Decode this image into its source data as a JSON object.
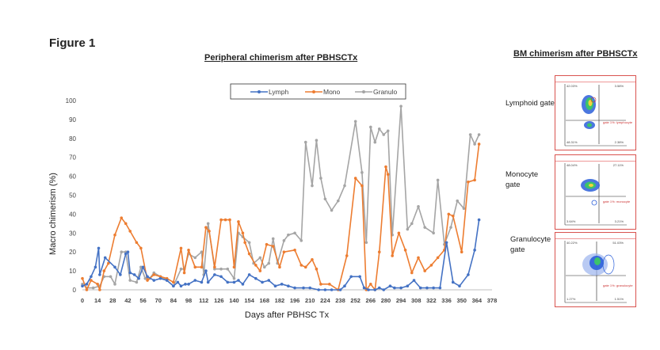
{
  "figure_label": "Figure 1",
  "bm_title": "BM chimerism after PBHSCTx",
  "gates": [
    {
      "label": "Lymphoid gate",
      "gate_text": "gate 1%: lymphocyte",
      "q_tl": "42.03%",
      "q_tr": "3.58%",
      "q_bl": "48.31%",
      "q_br": "2.38%"
    },
    {
      "label": "Monocyte gate",
      "gate_text": "gate 1%: monocyte",
      "q_tl": "48.04%",
      "q_tr": "27.11%",
      "q_bl": "3.64%",
      "q_br": "3.21%"
    },
    {
      "label": "Granulocyte gate",
      "gate_text": "gate 1%: granulocyte",
      "q_tl": "40.22%",
      "q_tr": "51.03%",
      "q_bl": "1.27%",
      "q_br": "1.51%"
    }
  ],
  "chart_data": {
    "type": "line",
    "title": "Peripheral chimerism after PBHSCTx",
    "xlabel": "Days after PBHSC Tx",
    "ylabel": "Macro chimerism (%)",
    "ylim": [
      0,
      100
    ],
    "xlim": [
      0,
      378
    ],
    "yticks": [
      0,
      10,
      20,
      30,
      40,
      50,
      60,
      70,
      80,
      90,
      100
    ],
    "xticks": [
      0,
      14,
      28,
      42,
      56,
      70,
      84,
      98,
      112,
      126,
      140,
      154,
      168,
      182,
      196,
      210,
      224,
      238,
      252,
      266,
      280,
      294,
      308,
      322,
      336,
      350,
      364,
      378
    ],
    "grid": false,
    "legend_position": "top",
    "series": [
      {
        "name": "Lymph",
        "color": "#4472c4",
        "points": [
          [
            0,
            2
          ],
          [
            4,
            3
          ],
          [
            8,
            7
          ],
          [
            12,
            12
          ],
          [
            15,
            22
          ],
          [
            16,
            8
          ],
          [
            21,
            17
          ],
          [
            30,
            12
          ],
          [
            35,
            8
          ],
          [
            40,
            19
          ],
          [
            42,
            20
          ],
          [
            44,
            9
          ],
          [
            48,
            8
          ],
          [
            52,
            6
          ],
          [
            56,
            12
          ],
          [
            60,
            7
          ],
          [
            66,
            5
          ],
          [
            72,
            6
          ],
          [
            78,
            5
          ],
          [
            84,
            2
          ],
          [
            88,
            4
          ],
          [
            91,
            2
          ],
          [
            95,
            3
          ],
          [
            98,
            3
          ],
          [
            104,
            5
          ],
          [
            110,
            4
          ],
          [
            114,
            10
          ],
          [
            116,
            4
          ],
          [
            122,
            8
          ],
          [
            128,
            7
          ],
          [
            134,
            4
          ],
          [
            140,
            4
          ],
          [
            144,
            5
          ],
          [
            148,
            3
          ],
          [
            154,
            8
          ],
          [
            160,
            6
          ],
          [
            166,
            4
          ],
          [
            172,
            5
          ],
          [
            178,
            2
          ],
          [
            184,
            3
          ],
          [
            190,
            2
          ],
          [
            196,
            1
          ],
          [
            204,
            1
          ],
          [
            210,
            1
          ],
          [
            218,
            0
          ],
          [
            224,
            0
          ],
          [
            230,
            0
          ],
          [
            238,
            0
          ],
          [
            242,
            2
          ],
          [
            248,
            7
          ],
          [
            256,
            7
          ],
          [
            260,
            1
          ],
          [
            264,
            0
          ],
          [
            270,
            0
          ],
          [
            274,
            1
          ],
          [
            278,
            0
          ],
          [
            284,
            2
          ],
          [
            288,
            1
          ],
          [
            294,
            1
          ],
          [
            300,
            2
          ],
          [
            306,
            5
          ],
          [
            312,
            1
          ],
          [
            318,
            1
          ],
          [
            324,
            1
          ],
          [
            330,
            1
          ],
          [
            336,
            25
          ],
          [
            342,
            4
          ],
          [
            348,
            2
          ],
          [
            356,
            8
          ],
          [
            362,
            21
          ],
          [
            366,
            37
          ]
        ]
      },
      {
        "name": "Mono",
        "color": "#ed7d31",
        "points": [
          [
            0,
            6
          ],
          [
            4,
            0
          ],
          [
            8,
            5
          ],
          [
            14,
            3
          ],
          [
            16,
            0
          ],
          [
            20,
            10
          ],
          [
            24,
            14
          ],
          [
            30,
            29
          ],
          [
            36,
            38
          ],
          [
            40,
            35
          ],
          [
            44,
            31
          ],
          [
            50,
            25
          ],
          [
            54,
            22
          ],
          [
            60,
            5
          ],
          [
            66,
            8
          ],
          [
            72,
            7
          ],
          [
            78,
            6
          ],
          [
            84,
            4
          ],
          [
            91,
            22
          ],
          [
            94,
            9
          ],
          [
            98,
            21
          ],
          [
            104,
            12
          ],
          [
            110,
            12
          ],
          [
            114,
            33
          ],
          [
            117,
            31
          ],
          [
            122,
            12
          ],
          [
            128,
            37
          ],
          [
            132,
            37
          ],
          [
            136,
            37
          ],
          [
            140,
            12
          ],
          [
            144,
            36
          ],
          [
            148,
            30
          ],
          [
            150,
            25
          ],
          [
            154,
            19
          ],
          [
            160,
            13
          ],
          [
            164,
            10
          ],
          [
            170,
            24
          ],
          [
            176,
            23
          ],
          [
            182,
            12
          ],
          [
            186,
            20
          ],
          [
            196,
            21
          ],
          [
            202,
            13
          ],
          [
            206,
            12
          ],
          [
            212,
            16
          ],
          [
            216,
            11
          ],
          [
            220,
            3
          ],
          [
            228,
            3
          ],
          [
            236,
            0
          ],
          [
            244,
            18
          ],
          [
            252,
            59
          ],
          [
            258,
            55
          ],
          [
            262,
            0
          ],
          [
            266,
            3
          ],
          [
            270,
            0
          ],
          [
            274,
            20
          ],
          [
            280,
            65
          ],
          [
            282,
            61
          ],
          [
            286,
            18
          ],
          [
            292,
            30
          ],
          [
            298,
            21
          ],
          [
            304,
            9
          ],
          [
            310,
            17
          ],
          [
            316,
            10
          ],
          [
            322,
            13
          ],
          [
            328,
            17
          ],
          [
            334,
            21
          ],
          [
            338,
            40
          ],
          [
            342,
            39
          ],
          [
            350,
            20
          ],
          [
            356,
            57
          ],
          [
            362,
            58
          ],
          [
            366,
            77
          ]
        ]
      },
      {
        "name": "Granulo",
        "color": "#a5a5a5",
        "points": [
          [
            0,
            3
          ],
          [
            4,
            1
          ],
          [
            10,
            1
          ],
          [
            16,
            2
          ],
          [
            20,
            7
          ],
          [
            26,
            7
          ],
          [
            30,
            3
          ],
          [
            36,
            20
          ],
          [
            40,
            20
          ],
          [
            44,
            5
          ],
          [
            50,
            4
          ],
          [
            54,
            12
          ],
          [
            58,
            6
          ],
          [
            62,
            6
          ],
          [
            66,
            9
          ],
          [
            72,
            7
          ],
          [
            78,
            5
          ],
          [
            84,
            2
          ],
          [
            91,
            11
          ],
          [
            94,
            11
          ],
          [
            98,
            19
          ],
          [
            104,
            17
          ],
          [
            110,
            20
          ],
          [
            112,
            8
          ],
          [
            116,
            35
          ],
          [
            122,
            11
          ],
          [
            128,
            11
          ],
          [
            134,
            11
          ],
          [
            140,
            6
          ],
          [
            144,
            30
          ],
          [
            148,
            28
          ],
          [
            154,
            25
          ],
          [
            158,
            14
          ],
          [
            164,
            17
          ],
          [
            168,
            12
          ],
          [
            172,
            14
          ],
          [
            176,
            27
          ],
          [
            180,
            14
          ],
          [
            186,
            26
          ],
          [
            190,
            29
          ],
          [
            196,
            30
          ],
          [
            202,
            26
          ],
          [
            206,
            78
          ],
          [
            212,
            55
          ],
          [
            216,
            79
          ],
          [
            220,
            59
          ],
          [
            224,
            48
          ],
          [
            230,
            42
          ],
          [
            236,
            47
          ],
          [
            242,
            55
          ],
          [
            252,
            89
          ],
          [
            258,
            62
          ],
          [
            262,
            25
          ],
          [
            266,
            86
          ],
          [
            270,
            78
          ],
          [
            274,
            85
          ],
          [
            278,
            82
          ],
          [
            282,
            84
          ],
          [
            286,
            29
          ],
          [
            294,
            97
          ],
          [
            300,
            32
          ],
          [
            304,
            35
          ],
          [
            310,
            44
          ],
          [
            316,
            33
          ],
          [
            324,
            30
          ],
          [
            328,
            58
          ],
          [
            334,
            24
          ],
          [
            340,
            33
          ],
          [
            346,
            47
          ],
          [
            352,
            43
          ],
          [
            358,
            82
          ],
          [
            362,
            77
          ],
          [
            366,
            82
          ]
        ]
      }
    ]
  }
}
